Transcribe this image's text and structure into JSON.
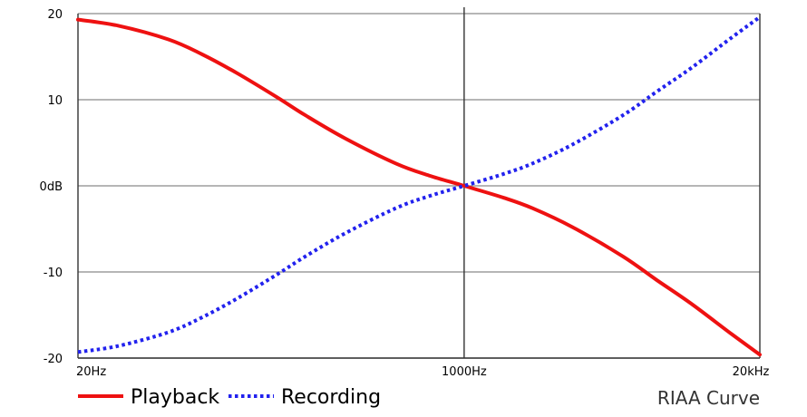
{
  "chart_data": {
    "type": "line",
    "title": "RIAA Curve",
    "xlabel": "",
    "ylabel": "",
    "x_scale": "log",
    "xlim": [
      20,
      20000
    ],
    "ylim": [
      -20,
      20
    ],
    "grid": true,
    "legend_position": "bottom-left",
    "x_tick_labels": [
      {
        "value": 20,
        "label": "20Hz"
      },
      {
        "value": 1000,
        "label": "1000Hz"
      },
      {
        "value": 20000,
        "label": "20kHz"
      }
    ],
    "y_tick_labels": [
      {
        "value": 20,
        "label": "20"
      },
      {
        "value": 10,
        "label": "10"
      },
      {
        "value": 0,
        "label": "0dB"
      },
      {
        "value": -10,
        "label": "-10"
      },
      {
        "value": -20,
        "label": "-20"
      }
    ],
    "x": [
      20,
      30,
      50,
      70,
      100,
      150,
      200,
      300,
      500,
      700,
      1000,
      1500,
      2000,
      3000,
      5000,
      7000,
      10000,
      15000,
      20000
    ],
    "series": [
      {
        "name": "Playback",
        "color": "#ee1111",
        "style": "solid",
        "values": [
          19.3,
          18.6,
          17.0,
          15.3,
          13.1,
          10.3,
          8.2,
          5.5,
          2.6,
          1.2,
          0.0,
          -1.4,
          -2.6,
          -4.8,
          -8.2,
          -10.9,
          -13.7,
          -17.2,
          -19.6
        ]
      },
      {
        "name": "Recording",
        "color": "#2222ee",
        "style": "dotted",
        "values": [
          -19.3,
          -18.6,
          -17.0,
          -15.3,
          -13.1,
          -10.3,
          -8.2,
          -5.5,
          -2.6,
          -1.2,
          0.0,
          1.4,
          2.6,
          4.8,
          8.2,
          10.9,
          13.7,
          17.2,
          19.6
        ]
      }
    ]
  }
}
